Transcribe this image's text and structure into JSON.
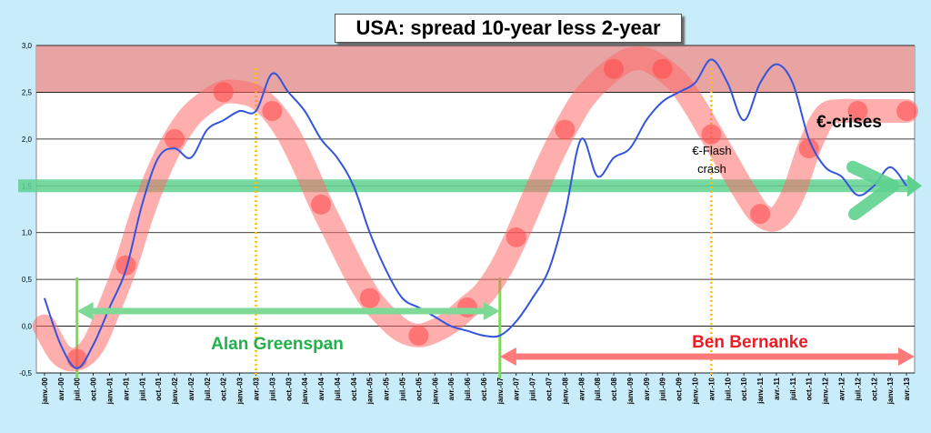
{
  "chart_data": {
    "type": "line",
    "title": "USA: spread 10-year less 2-year",
    "ylim": [
      -0.5,
      3.0
    ],
    "yticks": [
      "-0,5",
      "0,0",
      "0,5",
      "1,0",
      "1,5",
      "2,0",
      "2,5",
      "3,0"
    ],
    "ytick_values": [
      -0.5,
      0.0,
      0.5,
      1.0,
      1.5,
      2.0,
      2.5,
      3.0
    ],
    "grid": true,
    "xticks": [
      "janv.-00",
      "avr.-00",
      "juil.-00",
      "oct.-00",
      "janv.-01",
      "avr.-01",
      "juil.-01",
      "oct.-01",
      "janv.-02",
      "avr.-02",
      "juil.-02",
      "oct.-02",
      "janv.-03",
      "avr.-03",
      "juil.-03",
      "oct.-03",
      "janv.-04",
      "avr.-04",
      "juil.-04",
      "oct.-04",
      "janv.-05",
      "avr.-05",
      "juil.-05",
      "oct.-05",
      "janv.-06",
      "avr.-06",
      "juil.-06",
      "oct.-06",
      "janv.-07",
      "avr.-07",
      "juil.-07",
      "oct.-07",
      "janv.-08",
      "avr.-08",
      "juil.-08",
      "oct.-08",
      "janv.-09",
      "avr.-09",
      "juil.-09",
      "oct.-09",
      "janv.-10",
      "avr.-10",
      "juil.-10",
      "oct.-10",
      "janv.-11",
      "avr.-11",
      "juil.-11",
      "oct.-11",
      "janv.-12",
      "avr.-12",
      "juil.-12",
      "oct.-12",
      "janv.-13",
      "avr.-13"
    ],
    "series": [
      {
        "color": "#3355dd",
        "x": [
          "janv.-00",
          "avr.-00",
          "juil.-00",
          "oct.-00",
          "janv.-01",
          "avr.-01",
          "juil.-01",
          "oct.-01",
          "janv.-02",
          "avr.-02",
          "juil.-02",
          "oct.-02",
          "janv.-03",
          "avr.-03",
          "juil.-03",
          "oct.-03",
          "janv.-04",
          "avr.-04",
          "juil.-04",
          "oct.-04",
          "janv.-05",
          "avr.-05",
          "juil.-05",
          "oct.-05",
          "janv.-06",
          "avr.-06",
          "juil.-06",
          "oct.-06",
          "janv.-07",
          "avr.-07",
          "juil.-07",
          "oct.-07",
          "janv.-08",
          "avr.-08",
          "juil.-08",
          "oct.-08",
          "janv.-09",
          "avr.-09",
          "juil.-09",
          "oct.-09",
          "janv.-10",
          "avr.-10",
          "juil.-10",
          "oct.-10",
          "janv.-11",
          "avr.-11",
          "juil.-11",
          "oct.-11",
          "janv.-12",
          "avr.-12",
          "juil.-12",
          "oct.-12",
          "janv.-13",
          "avr.-13"
        ],
        "values": [
          0.3,
          -0.2,
          -0.45,
          -0.2,
          0.2,
          0.6,
          1.3,
          1.8,
          1.9,
          1.8,
          2.1,
          2.2,
          2.3,
          2.3,
          2.7,
          2.5,
          2.3,
          2.0,
          1.8,
          1.5,
          1.0,
          0.6,
          0.3,
          0.2,
          0.1,
          0.0,
          -0.05,
          -0.1,
          -0.1,
          0.05,
          0.3,
          0.6,
          1.2,
          2.0,
          1.6,
          1.8,
          1.9,
          2.2,
          2.4,
          2.5,
          2.6,
          2.85,
          2.6,
          2.2,
          2.6,
          2.8,
          2.6,
          2.0,
          1.7,
          1.6,
          1.4,
          1.5,
          1.7,
          1.5
        ]
      }
    ],
    "cycle_band": {
      "color": "#ff6b6b",
      "x": [
        "janv.-00",
        "avr.-00",
        "juil.-00",
        "oct.-00",
        "janv.-01",
        "avr.-01",
        "juil.-01",
        "oct.-01",
        "janv.-02",
        "avr.-02",
        "juil.-02",
        "oct.-02",
        "janv.-03",
        "avr.-03",
        "juil.-03",
        "oct.-03",
        "janv.-04",
        "avr.-04",
        "juil.-04",
        "oct.-04",
        "janv.-05",
        "avr.-05",
        "juil.-05",
        "oct.-05",
        "janv.-06",
        "avr.-06",
        "juil.-06",
        "oct.-06",
        "janv.-07",
        "avr.-07",
        "juil.-07",
        "oct.-07",
        "janv.-08",
        "avr.-08",
        "juil.-08",
        "oct.-08",
        "janv.-09",
        "avr.-09",
        "juil.-09",
        "oct.-09",
        "janv.-10",
        "avr.-10",
        "juil.-10",
        "oct.-10",
        "janv.-11",
        "avr.-11",
        "juil.-11",
        "oct.-11",
        "janv.-12",
        "avr.-12",
        "juil.-12",
        "oct.-12",
        "janv.-13",
        "avr.-13"
      ],
      "values": [
        0.0,
        -0.3,
        -0.35,
        -0.2,
        0.2,
        0.65,
        1.2,
        1.65,
        2.0,
        2.25,
        2.4,
        2.5,
        2.5,
        2.45,
        2.3,
        2.05,
        1.7,
        1.3,
        0.95,
        0.6,
        0.3,
        0.1,
        -0.05,
        -0.1,
        -0.05,
        0.05,
        0.2,
        0.35,
        0.6,
        0.95,
        1.35,
        1.75,
        2.1,
        2.4,
        2.6,
        2.75,
        2.85,
        2.85,
        2.75,
        2.6,
        2.35,
        2.05,
        1.75,
        1.45,
        1.2,
        1.15,
        1.4,
        1.9,
        2.25,
        2.3,
        2.3,
        2.3,
        2.3,
        2.3
      ]
    },
    "reference_band": {
      "from": 2.5,
      "to": 3.0,
      "color": "#e8a3a3"
    },
    "reference_line": {
      "value": 1.5,
      "color": "#5fd18f"
    },
    "markers": [
      {
        "label": "",
        "x": "avr.-03",
        "style": "dotted",
        "color": "#ffc000"
      },
      {
        "label": "",
        "x": "avr.-10",
        "style": "dotted",
        "color": "#ffc000"
      },
      {
        "label": "",
        "x": "juil.-00",
        "style": "solid",
        "color": "#7ed957"
      },
      {
        "label": "",
        "x": "janv.-07",
        "style": "solid",
        "color": "#7ed957"
      }
    ],
    "annotations": [
      {
        "text": "Alan  Greenspan",
        "color": "#22b14c"
      },
      {
        "text": "Ben  Bernanke",
        "color": "#ed1c24"
      },
      {
        "text": "€-Flash",
        "color": "#000000"
      },
      {
        "text": "crash",
        "color": "#000000"
      },
      {
        "text": "€-crises",
        "color": "#000000"
      }
    ],
    "ranges": [
      {
        "from": "juil.-00",
        "to": "janv.-07",
        "color": "#7ed997"
      },
      {
        "from": "janv.-07",
        "to": "avr.-13",
        "color": "#ff7a7a"
      }
    ]
  }
}
